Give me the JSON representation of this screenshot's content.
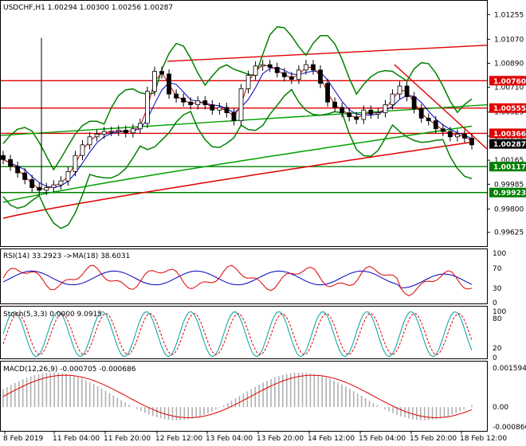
{
  "main": {
    "symbol_header": "USDCHF,H1  1.00294 1.00300 1.00256 1.00287",
    "price_axis": [
      "1.01255",
      "1.01070",
      "1.00890",
      "1.00710",
      "1.00525",
      "1.00345",
      "1.00165",
      "0.99985",
      "0.99800",
      "0.99625"
    ],
    "hlines": [
      {
        "value": 1.0076,
        "label": "1.00760",
        "color": "#e00000"
      },
      {
        "value": 1.00555,
        "label": "1.00555",
        "color": "#e00000"
      },
      {
        "value": 1.00366,
        "label": "1.00366",
        "color": "#e00000"
      },
      {
        "value": 1.00117,
        "label": "1.00117",
        "color": "#008000"
      },
      {
        "value": 0.99923,
        "label": "0.99923",
        "color": "#008000"
      }
    ],
    "current_price": {
      "value": 1.00287,
      "label": "1.00287"
    }
  },
  "rsi": {
    "header": "RSI(14) 33.2923  ->MA(18) 38.6031",
    "axis": [
      "100",
      "70",
      "30",
      "0"
    ]
  },
  "stoch": {
    "header": "Stoch(5,3,3) 0.0000 9.0915",
    "axis": [
      "100",
      "80",
      "20",
      "0"
    ]
  },
  "macd": {
    "header": "MACD(12,26,9) -0.000705 -0.000686",
    "axis": [
      "0.001594",
      "0.00",
      "-0.000866"
    ]
  },
  "time_axis": [
    "8 Feb 2019",
    "11 Feb 04:00",
    "11 Feb 20:00",
    "12 Feb 12:00",
    "13 Feb 04:00",
    "13 Feb 20:00",
    "14 Feb 12:00",
    "15 Feb 04:00",
    "15 Feb 20:00",
    "18 Feb 12:00"
  ],
  "colors": {
    "bollinger": "#008000",
    "ma_fast": "#c00000",
    "ma_slow": "#0000c0",
    "sma_red": "#e00000",
    "sma_green": "#00a000",
    "resistance": "#e00000"
  },
  "chart_data": {
    "type": "candlestick",
    "title": "USDCHF,H1",
    "x": [
      "8 Feb 2019",
      "11 Feb 04:00",
      "11 Feb 20:00",
      "12 Feb 12:00",
      "13 Feb 04:00",
      "13 Feb 20:00",
      "14 Feb 12:00",
      "15 Feb 04:00",
      "15 Feb 20:00",
      "18 Feb 12:00"
    ],
    "ylim": [
      0.9954,
      1.0134
    ],
    "close_path": [
      1.0017,
      1.0012,
      1.0007,
      1.0002,
      0.9996,
      0.9994,
      0.9996,
      0.9998,
      1.0001,
      1.0008,
      1.002,
      1.0028,
      1.0034,
      1.0036,
      1.0038,
      1.0038,
      1.0039,
      1.0037,
      1.004,
      1.0044,
      1.0068,
      1.0083,
      1.0081,
      1.0066,
      1.0063,
      1.006,
      1.0058,
      1.0061,
      1.0058,
      1.0054,
      1.0056,
      1.0052,
      1.0046,
      1.007,
      1.008,
      1.0087,
      1.0088,
      1.0086,
      1.0082,
      1.0079,
      1.0077,
      1.0084,
      1.0088,
      1.0084,
      1.0074,
      1.006,
      1.0056,
      1.0052,
      1.0049,
      1.0047,
      1.0054,
      1.0051,
      1.0052,
      1.0058,
      1.0066,
      1.0072,
      1.0064,
      1.0055,
      1.0048,
      1.0046,
      1.004,
      1.0038,
      1.0034,
      1.0036,
      1.0033,
      1.0028
    ]
  }
}
